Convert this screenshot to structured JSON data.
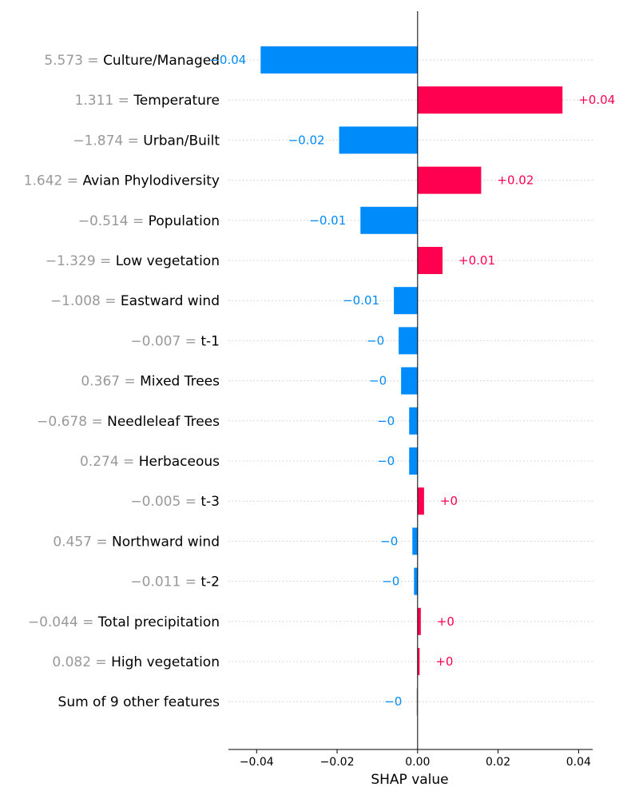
{
  "chart_data": {
    "type": "bar",
    "orientation": "horizontal",
    "xlabel": "SHAP value",
    "xlim": [
      -0.047,
      0.0435
    ],
    "xticks": [
      "−0.04",
      "−0.02",
      "0.00",
      "0.02",
      "0.04"
    ],
    "xtick_values": [
      -0.04,
      -0.02,
      0.0,
      0.02,
      0.04
    ],
    "grid": "dotted horizontal guide lines",
    "colors": {
      "positive": "#ff0051",
      "negative": "#008bfb",
      "other": "#cccccc",
      "feature_value": "#999999",
      "feature_name": "#000000",
      "axis": "#000000",
      "grid": "#cccccc"
    },
    "rows": [
      {
        "feature_value": "5.573",
        "feature": "Culture/Managed",
        "value": -0.039,
        "label": "−0.04"
      },
      {
        "feature_value": "1.311",
        "feature": "Temperature",
        "value": 0.036,
        "label": "+0.04"
      },
      {
        "feature_value": "−1.874",
        "feature": "Urban/Built",
        "value": -0.0195,
        "label": "−0.02"
      },
      {
        "feature_value": "1.642",
        "feature": "Avian Phylodiversity",
        "value": 0.0158,
        "label": "+0.02"
      },
      {
        "feature_value": "−0.514",
        "feature": "Population",
        "value": -0.0142,
        "label": "−0.01"
      },
      {
        "feature_value": "−1.329",
        "feature": "Low vegetation",
        "value": 0.0062,
        "label": "+0.01"
      },
      {
        "feature_value": "−1.008",
        "feature": "Eastward wind",
        "value": -0.0059,
        "label": "−0.01"
      },
      {
        "feature_value": "−0.007",
        "feature": "t-1",
        "value": -0.0047,
        "label": "−0"
      },
      {
        "feature_value": "0.367",
        "feature": "Mixed Trees",
        "value": -0.0041,
        "label": "−0"
      },
      {
        "feature_value": "−0.678",
        "feature": "Needleleaf Trees",
        "value": -0.0021,
        "label": "−0"
      },
      {
        "feature_value": "0.274",
        "feature": "Herbaceous",
        "value": -0.0021,
        "label": "−0"
      },
      {
        "feature_value": "−0.005",
        "feature": "t-3",
        "value": 0.0016,
        "label": "+0"
      },
      {
        "feature_value": "0.457",
        "feature": "Northward wind",
        "value": -0.0013,
        "label": "−0"
      },
      {
        "feature_value": "−0.011",
        "feature": "t-2",
        "value": -0.0009,
        "label": "−0"
      },
      {
        "feature_value": "−0.044",
        "feature": "Total precipitation",
        "value": 0.0008,
        "label": "+0"
      },
      {
        "feature_value": "0.082",
        "feature": "High vegetation",
        "value": 0.0005,
        "label": "+0"
      },
      {
        "feature_value": "",
        "feature": "Sum of 9 other features",
        "value": -0.0003,
        "label": "−0",
        "is_other": true
      }
    ]
  }
}
